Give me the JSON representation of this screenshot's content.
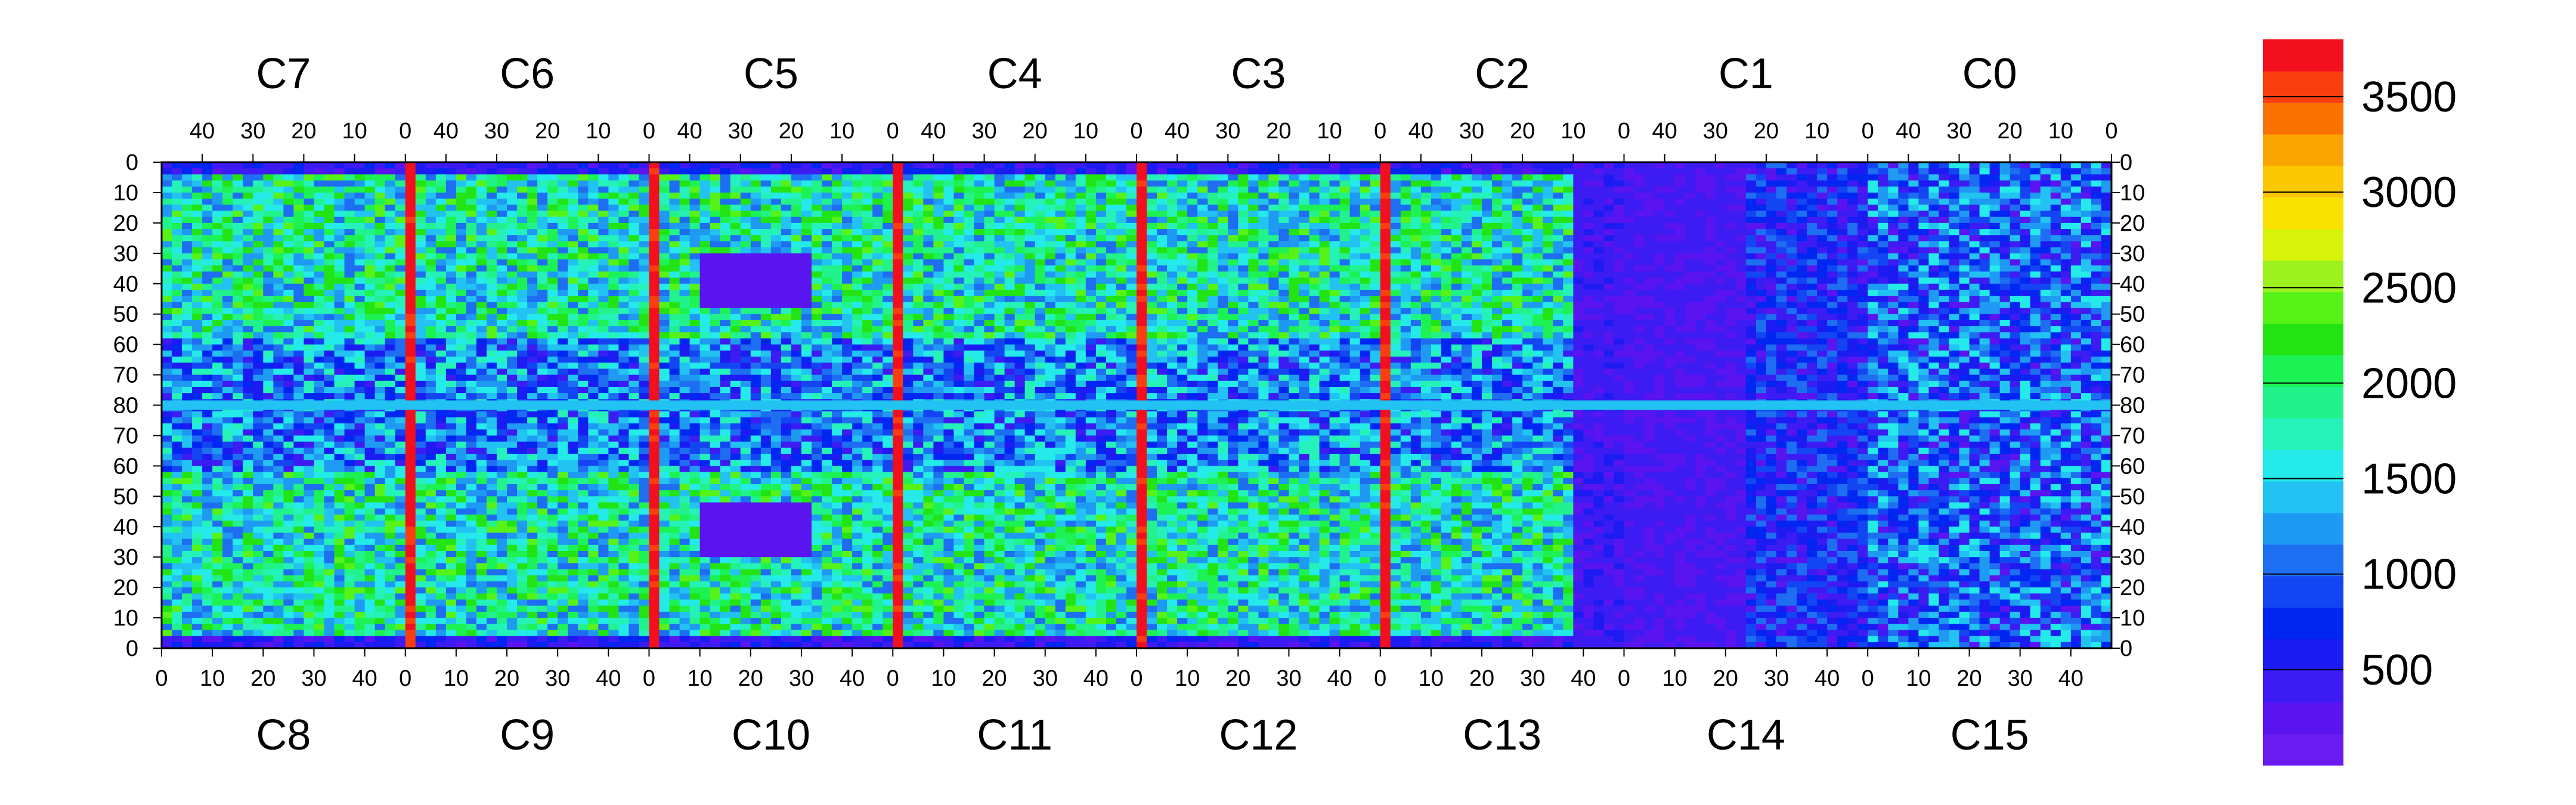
{
  "chart_data": {
    "type": "heatmap",
    "top_chips": [
      "C7",
      "C6",
      "C5",
      "C4",
      "C3",
      "C2",
      "C1",
      "C0"
    ],
    "bottom_chips": [
      "C8",
      "C9",
      "C10",
      "C11",
      "C12",
      "C13",
      "C14",
      "C15"
    ],
    "top_axis_ticks": [
      "40",
      "30",
      "20",
      "10",
      "0"
    ],
    "bottom_axis_ticks": [
      "0",
      "10",
      "20",
      "30",
      "40"
    ],
    "y_axis_ticks": [
      "0",
      "10",
      "20",
      "30",
      "40",
      "50",
      "60",
      "70",
      "80",
      "70",
      "60",
      "50",
      "40",
      "30",
      "20",
      "10",
      "0"
    ],
    "colorbar": {
      "ticks": [
        "500",
        "1000",
        "1500",
        "2000",
        "2500",
        "3000",
        "3500"
      ],
      "range": [
        0,
        3800
      ],
      "bands": 20,
      "colors": [
        "#6a1bf0",
        "#5a14f0",
        "#3c1cf2",
        "#1c1cf2",
        "#0026f2",
        "#1346f2",
        "#1e6ef2",
        "#1f9af2",
        "#22c2f2",
        "#25eaea",
        "#24f2b8",
        "#22f28c",
        "#1cf254",
        "#22e414",
        "#56f218",
        "#9cf21e",
        "#d8f20a",
        "#fae200",
        "#fac800",
        "#faa400",
        "#fa7200",
        "#fa3e10",
        "#f20f1e"
      ]
    },
    "description_pattern": {
      "chip_pixels_per_side": 48,
      "rows_per_half": 80,
      "hot_edge_columns_value": 3600,
      "dead_region_value": 250,
      "typical_value": 1700
    }
  }
}
